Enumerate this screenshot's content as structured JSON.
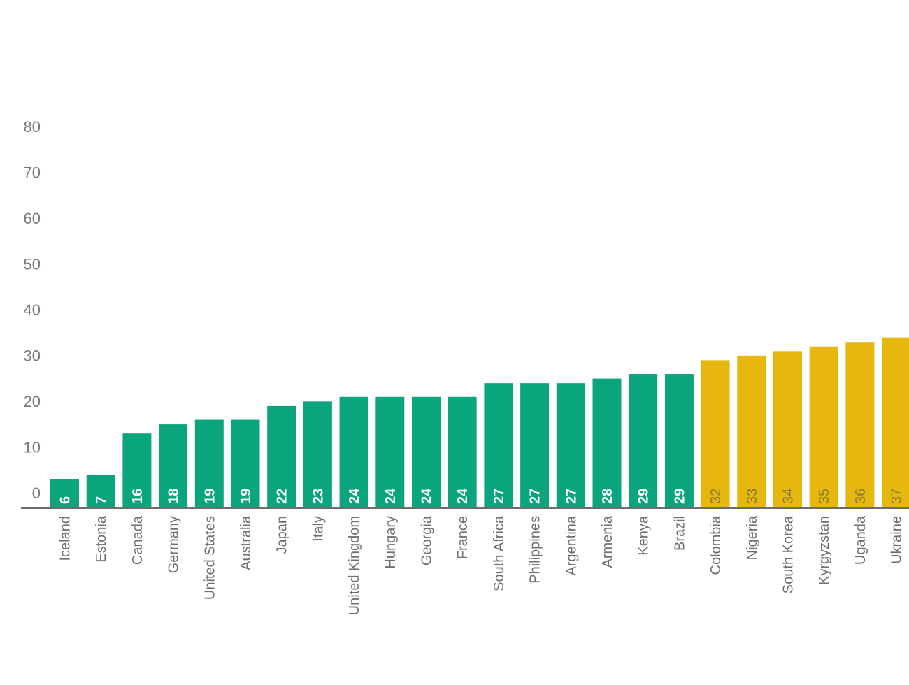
{
  "chart_data": {
    "type": "bar",
    "title": "",
    "xlabel": "",
    "ylabel": "",
    "ylim": [
      0,
      80
    ],
    "yticks": [
      0,
      10,
      20,
      30,
      40,
      50,
      60,
      70,
      80
    ],
    "grid": false,
    "categories": [
      "Iceland",
      "Estonia",
      "Canada",
      "Germany",
      "United States",
      "Australia",
      "Japan",
      "Italy",
      "United Kingdom",
      "Hungary",
      "Georgia",
      "France",
      "South Africa",
      "Philippines",
      "Argentina",
      "Armenia",
      "Kenya",
      "Brazil",
      "Colombia",
      "Nigeria",
      "South Korea",
      "Kyrgyzstan",
      "Uganda",
      "Ukraine"
    ],
    "values": [
      6,
      7,
      16,
      18,
      19,
      19,
      22,
      23,
      24,
      24,
      24,
      24,
      27,
      27,
      27,
      28,
      29,
      29,
      32,
      33,
      34,
      35,
      36,
      37
    ],
    "groups": [
      "green",
      "green",
      "green",
      "green",
      "green",
      "green",
      "green",
      "green",
      "green",
      "green",
      "green",
      "green",
      "green",
      "green",
      "green",
      "green",
      "green",
      "green",
      "yellow",
      "yellow",
      "yellow",
      "yellow",
      "yellow",
      "yellow"
    ],
    "colors": {
      "green": "#0ba57d",
      "yellow": "#e6b80e",
      "green_label": "#ffffff",
      "yellow_label": "#8a7a3a",
      "axis": "#6d6d6d",
      "tick_text": "#7a7a7a",
      "category_text": "#6f6f6f"
    }
  }
}
